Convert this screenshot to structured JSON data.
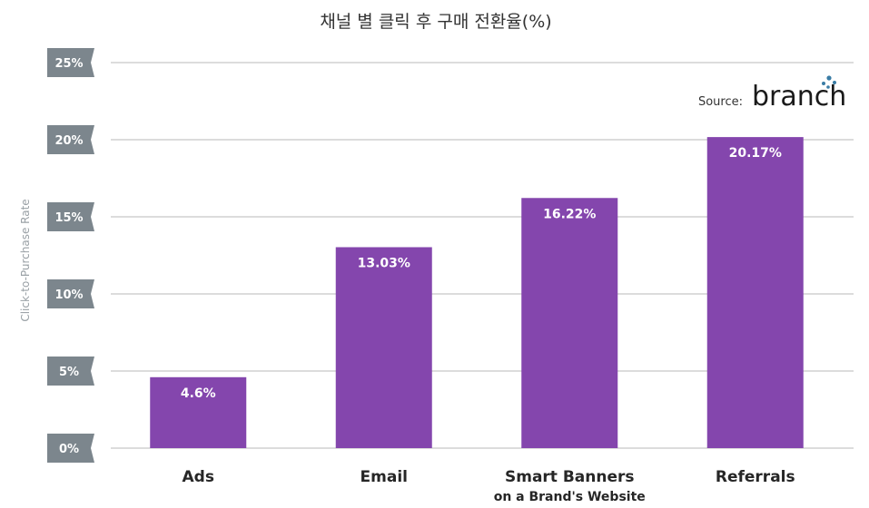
{
  "chart_data": {
    "type": "bar",
    "title": "채널 별 클릭 후 구매 전환율(%)",
    "ylabel": "Click-to-Purchase Rate",
    "xlabel": "",
    "categories": [
      {
        "line1": "Ads",
        "line2": ""
      },
      {
        "line1": "Email",
        "line2": ""
      },
      {
        "line1": "Smart Banners",
        "line2": "on a Brand's Website"
      },
      {
        "line1": "Referrals",
        "line2": ""
      }
    ],
    "values": [
      4.6,
      13.03,
      16.22,
      20.17
    ],
    "data_labels": [
      "4.6%",
      "13.03%",
      "16.22%",
      "20.17%"
    ],
    "yticks": [
      0,
      5,
      10,
      15,
      20,
      25
    ],
    "ytick_labels": [
      "0%",
      "5%",
      "10%",
      "15%",
      "20%",
      "25%"
    ],
    "ylim": [
      0,
      25
    ],
    "grid": true,
    "bar_color": "#8446ad",
    "source_label": "Source:",
    "source_brand": "branch"
  }
}
